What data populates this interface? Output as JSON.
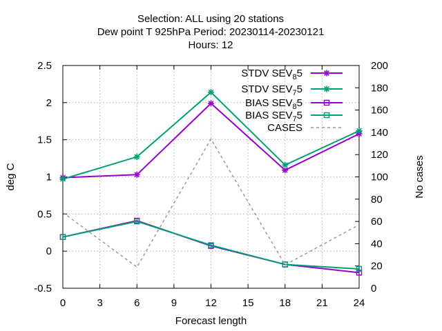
{
  "chart_data": {
    "type": "line",
    "title_lines": [
      "Selection: ALL using    20 stations",
      "Dew point T 925hPa   Period: 20230114-20230121",
      "Hours:  12"
    ],
    "xlabel": "Forecast length",
    "ylabel": "deg C",
    "y2label": "No cases",
    "x": [
      0,
      6,
      12,
      18,
      24
    ],
    "xticks": [
      0,
      3,
      6,
      9,
      12,
      15,
      18,
      21,
      24
    ],
    "xlim": [
      0,
      24
    ],
    "ylim": [
      -0.5,
      2.5
    ],
    "yticks": [
      -0.5,
      0,
      0.5,
      1,
      1.5,
      2,
      2.5
    ],
    "ytick_labels": [
      "-0.5",
      "0",
      "0.5",
      "1",
      "1.5",
      "2",
      "2.5"
    ],
    "y2lim": [
      0,
      200
    ],
    "y2ticks": [
      0,
      20,
      40,
      60,
      80,
      100,
      120,
      140,
      160,
      180,
      200
    ],
    "grid": true,
    "legend_position": "top-right",
    "series": [
      {
        "name": "STDV SEV",
        "sub": "8",
        "suffix": "5",
        "axis": "y",
        "marker": "star",
        "color": "#9400d3",
        "dash": false,
        "values": [
          0.99,
          1.03,
          1.99,
          1.09,
          1.58
        ]
      },
      {
        "name": "STDV SEV",
        "sub": "7",
        "suffix": "5",
        "axis": "y",
        "marker": "star",
        "color": "#009e73",
        "dash": false,
        "values": [
          0.97,
          1.27,
          2.14,
          1.16,
          1.62
        ]
      },
      {
        "name": "BIAS SEV",
        "sub": "8",
        "suffix": "5",
        "axis": "y",
        "marker": "square",
        "color": "#9400d3",
        "dash": false,
        "values": [
          0.19,
          0.41,
          0.07,
          -0.18,
          -0.29
        ]
      },
      {
        "name": "BIAS SEV",
        "sub": "7",
        "suffix": "5",
        "axis": "y",
        "marker": "square",
        "color": "#009e73",
        "dash": false,
        "values": [
          0.19,
          0.4,
          0.08,
          -0.18,
          -0.24
        ]
      },
      {
        "name": "CASES",
        "sub": "",
        "suffix": "",
        "axis": "y2",
        "marker": "none",
        "color": "#999999",
        "dash": true,
        "values": [
          68,
          19,
          134,
          21,
          57
        ]
      }
    ]
  }
}
